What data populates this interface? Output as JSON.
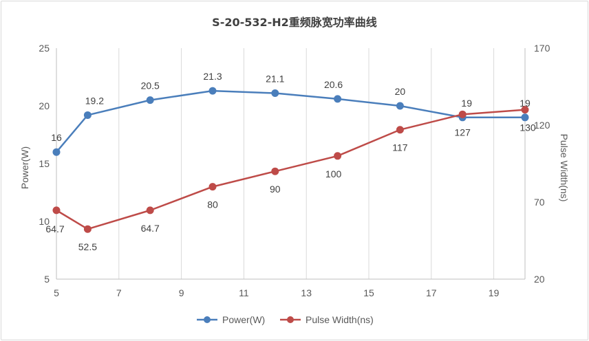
{
  "chart_data": {
    "type": "line",
    "title": "S-20-532-H2重频脉宽功率曲线",
    "x": [
      5,
      6,
      8,
      10,
      12,
      14,
      16,
      18,
      20
    ],
    "xlim": [
      5,
      20
    ],
    "xticks": [
      5,
      7,
      9,
      11,
      13,
      15,
      17,
      19
    ],
    "y_left": {
      "label": "Power(W)",
      "lim": [
        5,
        25
      ],
      "ticks": [
        5,
        10,
        15,
        20,
        25
      ]
    },
    "y_right": {
      "label": "Pulse Width(ns)",
      "lim": [
        20,
        170
      ],
      "ticks": [
        20,
        70,
        120,
        170
      ]
    },
    "grid": "vertical",
    "legend": "bottom",
    "series": [
      {
        "name": "Power(W)",
        "axis": "left",
        "color": "#4a7ebb",
        "values": [
          16,
          19.2,
          20.5,
          21.3,
          21.1,
          20.6,
          20,
          19,
          19
        ],
        "labels": [
          "16",
          "19.2",
          "20.5",
          "21.3",
          "21.1",
          "20.6",
          "20",
          "19",
          "19"
        ]
      },
      {
        "name": "Pulse Width(ns)",
        "axis": "right",
        "color": "#be4b48",
        "values": [
          64.7,
          52.5,
          64.7,
          80,
          90,
          100,
          117,
          127,
          130
        ],
        "labels": [
          "64.7",
          "52.5",
          "64.7",
          "80",
          "90",
          "100",
          "117",
          "127",
          "130"
        ]
      }
    ]
  }
}
